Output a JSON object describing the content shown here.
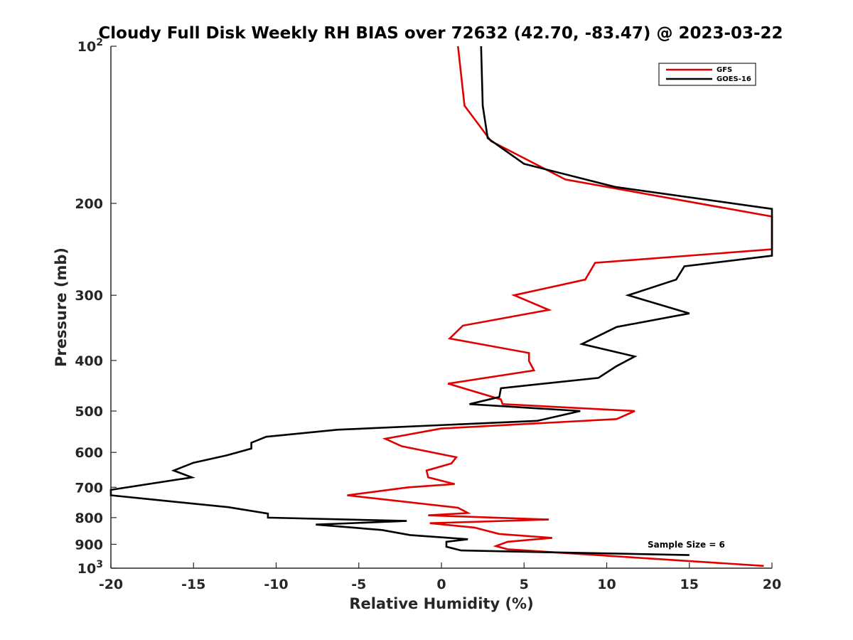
{
  "chart_data": {
    "type": "line",
    "title": "Cloudy Full Disk Weekly RH BIAS over 72632 (42.70, -83.47) @ 2023-03-22",
    "xlabel": "Relative Humidity (%)",
    "ylabel": "Pressure (mb)",
    "xlim": [
      -20,
      20
    ],
    "ylim": [
      100,
      1000
    ],
    "yscale": "log",
    "y_reversed": true,
    "x_ticks": [
      "-20",
      "-15",
      "-10",
      "-5",
      "0",
      "5",
      "10",
      "15",
      "20"
    ],
    "y_ticks": [
      {
        "value": 100,
        "base": "10",
        "exp": "2"
      },
      {
        "value": 200,
        "label": "200"
      },
      {
        "value": 300,
        "label": "300"
      },
      {
        "value": 400,
        "label": "400"
      },
      {
        "value": 500,
        "label": "500"
      },
      {
        "value": 600,
        "label": "600"
      },
      {
        "value": 700,
        "label": "700"
      },
      {
        "value": 800,
        "label": "800"
      },
      {
        "value": 900,
        "label": "900"
      },
      {
        "value": 1000,
        "base": "10",
        "exp": "3"
      }
    ],
    "legend": {
      "placement": "top-right"
    },
    "annotation": "Sample Size = 6",
    "series": [
      {
        "name": "GFS",
        "color": "#e00000",
        "points": [
          [
            1.0,
            100
          ],
          [
            1.4,
            130
          ],
          [
            3.0,
            152
          ],
          [
            7.5,
            180
          ],
          [
            20.0,
            212
          ],
          [
            20.0,
            245
          ],
          [
            9.3,
            260
          ],
          [
            8.7,
            280
          ],
          [
            4.4,
            300
          ],
          [
            6.5,
            320
          ],
          [
            1.3,
            343
          ],
          [
            0.5,
            363
          ],
          [
            5.3,
            387
          ],
          [
            5.3,
            401
          ],
          [
            5.6,
            418
          ],
          [
            0.4,
            443
          ],
          [
            3.6,
            475
          ],
          [
            3.7,
            485
          ],
          [
            11.7,
            500
          ],
          [
            10.6,
            518
          ],
          [
            0.0,
            540
          ],
          [
            -3.4,
            565
          ],
          [
            -2.4,
            584
          ],
          [
            0.9,
            613
          ],
          [
            0.6,
            630
          ],
          [
            -0.9,
            650
          ],
          [
            -0.8,
            670
          ],
          [
            0.8,
            690
          ],
          [
            -2.0,
            700
          ],
          [
            -5.7,
            725
          ],
          [
            1.0,
            766
          ],
          [
            1.6,
            784
          ],
          [
            -0.8,
            792
          ],
          [
            6.5,
            807
          ],
          [
            -0.7,
            820
          ],
          [
            2.0,
            836
          ],
          [
            3.5,
            860
          ],
          [
            6.7,
            875
          ],
          [
            4.0,
            890
          ],
          [
            3.3,
            907
          ],
          [
            4.0,
            920
          ],
          [
            19.5,
            990
          ]
        ]
      },
      {
        "name": "GOES-16",
        "color": "#000000",
        "points": [
          [
            2.4,
            100
          ],
          [
            2.5,
            130
          ],
          [
            2.8,
            150
          ],
          [
            5.0,
            168
          ],
          [
            10.5,
            186
          ],
          [
            20.0,
            205
          ],
          [
            20.0,
            252
          ],
          [
            14.7,
            264
          ],
          [
            14.2,
            280
          ],
          [
            11.3,
            300
          ],
          [
            15.0,
            325
          ],
          [
            10.6,
            345
          ],
          [
            8.5,
            372
          ],
          [
            11.7,
            393
          ],
          [
            10.6,
            410
          ],
          [
            9.5,
            432
          ],
          [
            3.6,
            452
          ],
          [
            3.5,
            470
          ],
          [
            1.7,
            485
          ],
          [
            8.4,
            500
          ],
          [
            5.8,
            522
          ],
          [
            -6.3,
            543
          ],
          [
            -10.6,
            560
          ],
          [
            -11.5,
            575
          ],
          [
            -11.5,
            590
          ],
          [
            -13.0,
            608
          ],
          [
            -15.0,
            628
          ],
          [
            -16.2,
            650
          ],
          [
            -15.1,
            670
          ],
          [
            -20.0,
            708
          ],
          [
            -20.0,
            725
          ],
          [
            -17.8,
            737
          ],
          [
            -12.9,
            764
          ],
          [
            -10.5,
            786
          ],
          [
            -10.5,
            800
          ],
          [
            -2.1,
            812
          ],
          [
            -7.6,
            825
          ],
          [
            -3.6,
            845
          ],
          [
            -1.9,
            864
          ],
          [
            1.6,
            880
          ],
          [
            0.3,
            890
          ],
          [
            0.3,
            910
          ],
          [
            1.2,
            925
          ],
          [
            15.0,
            944
          ]
        ]
      }
    ]
  }
}
